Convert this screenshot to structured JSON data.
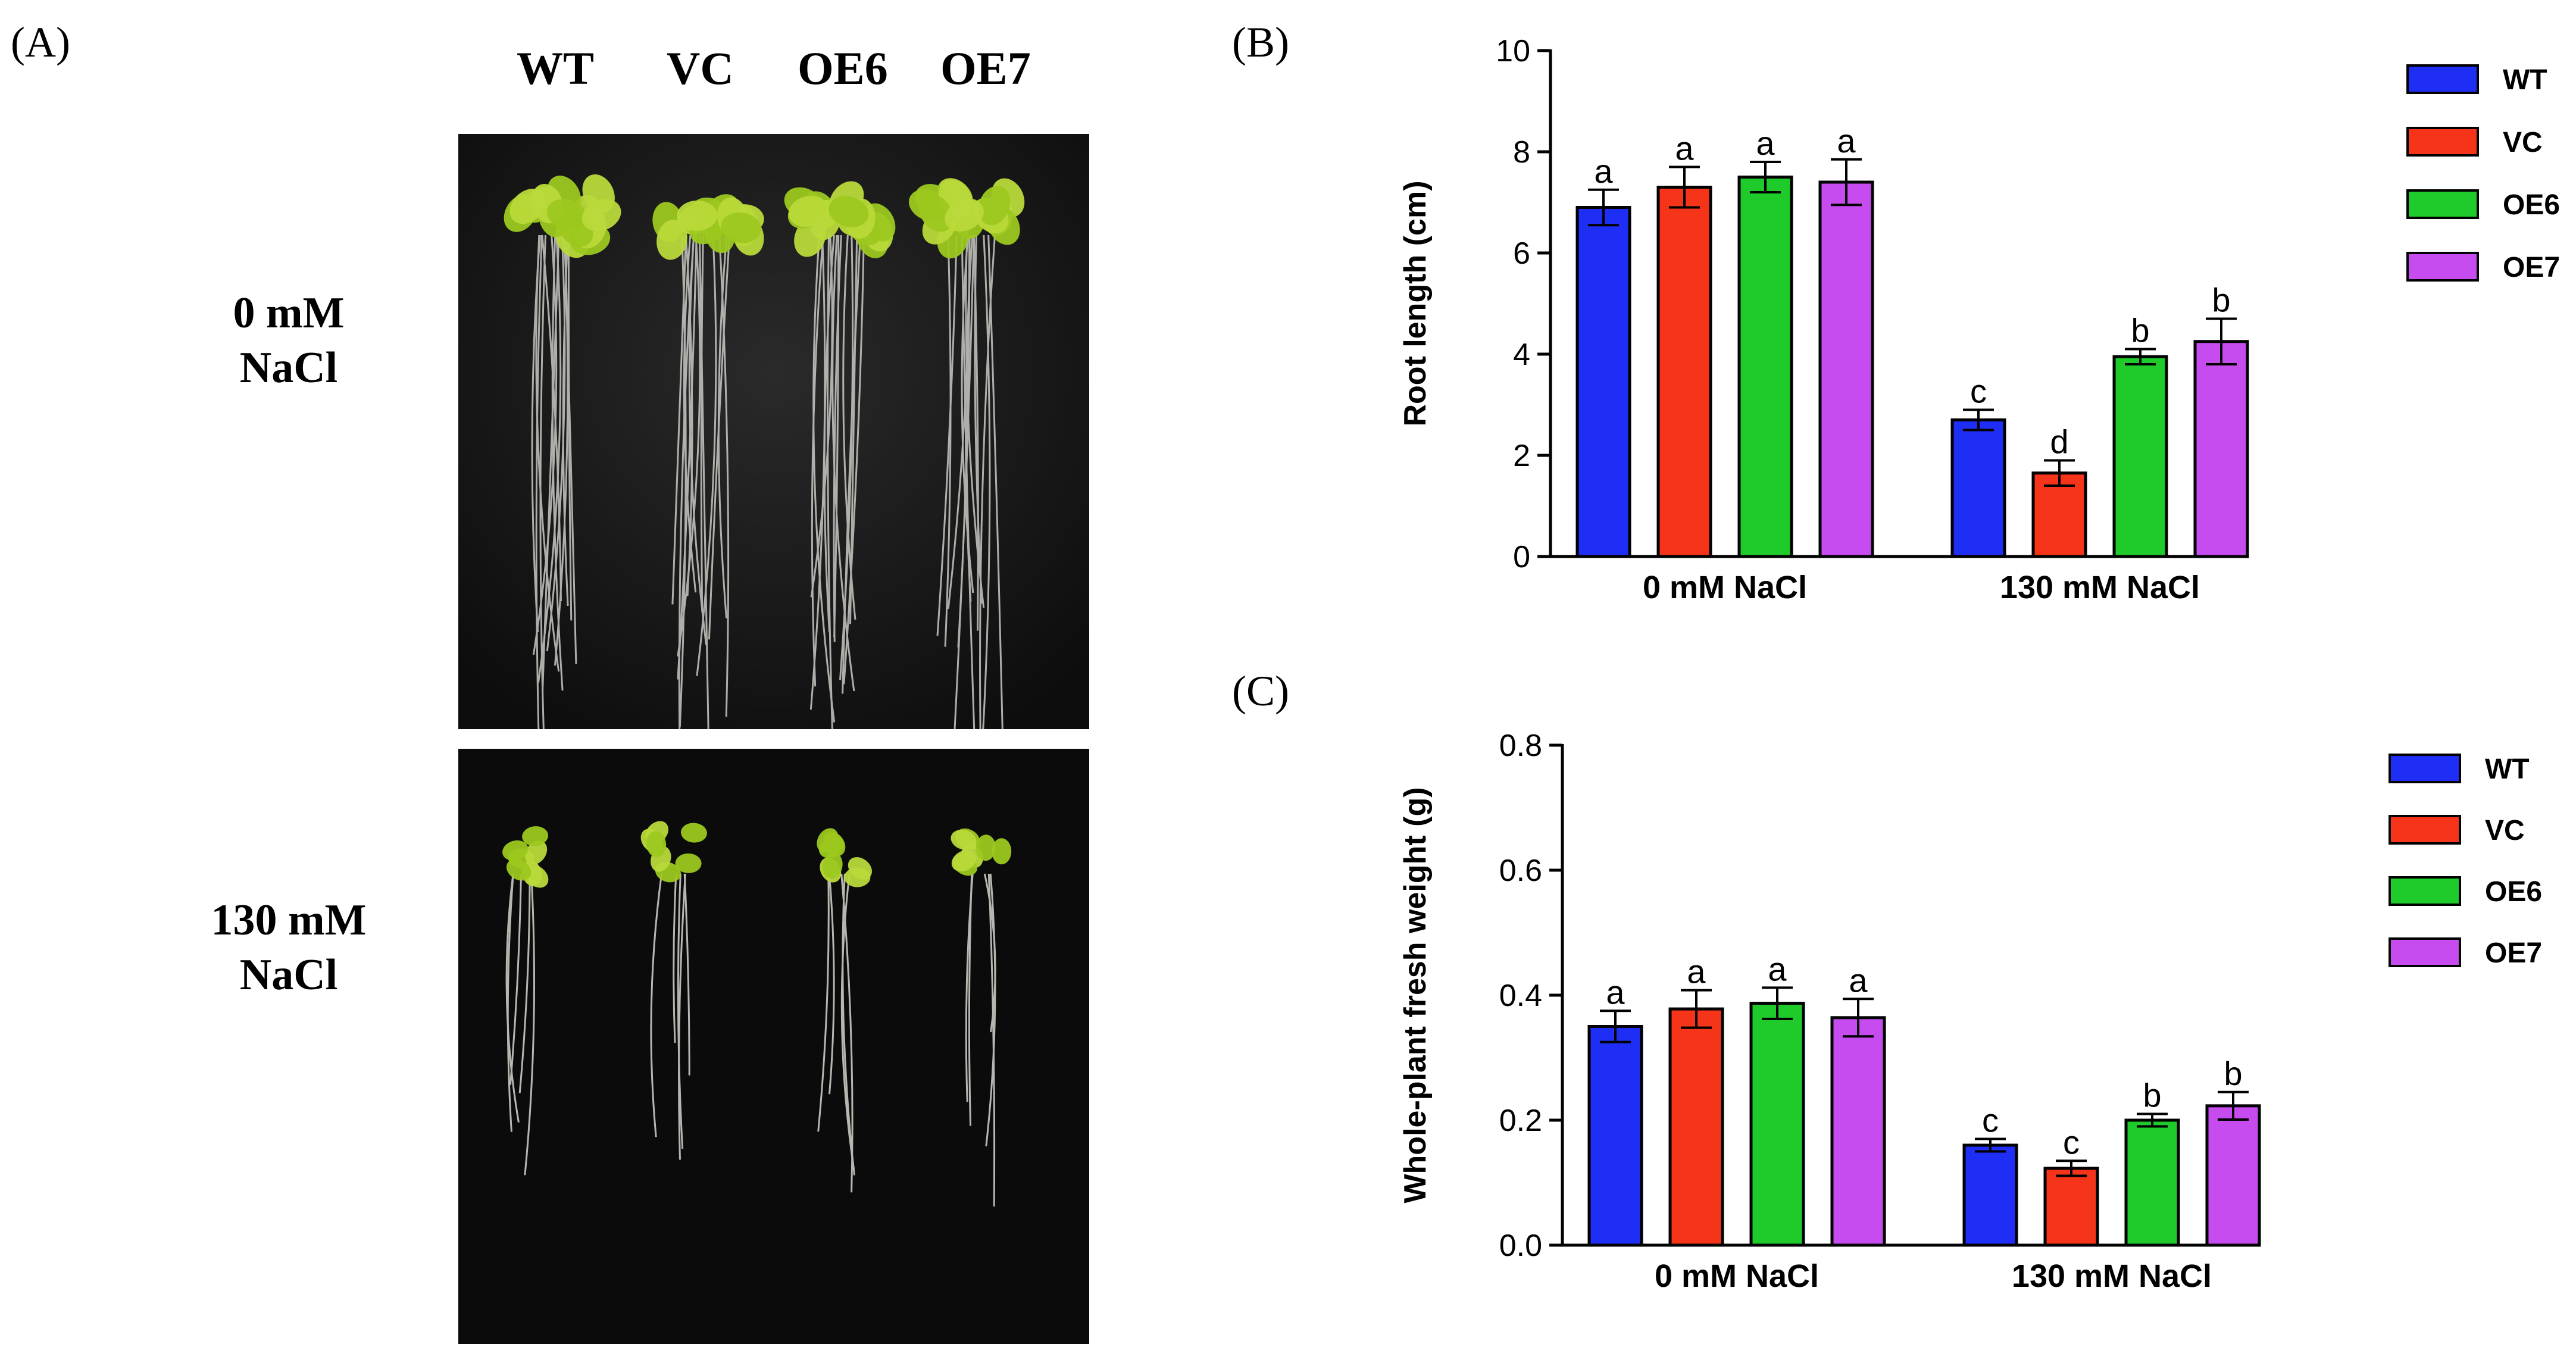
{
  "panel_a": {
    "label": "(A)",
    "genotypes": [
      "WT",
      "VC",
      "OE6",
      "OE7"
    ],
    "conditions": [
      {
        "line1": "0 mM",
        "line2": "NaCl"
      },
      {
        "line1": "130 mM",
        "line2": "NaCl"
      }
    ]
  },
  "panel_b": {
    "label": "(B)"
  },
  "panel_c": {
    "label": "(C)"
  },
  "colors": {
    "WT": "#1f2ef5",
    "VC": "#f5341a",
    "OE6": "#1ecb2a",
    "OE7": "#c64cf0"
  },
  "chart_data": [
    {
      "type": "bar",
      "title": "",
      "ylabel": "Root length (cm)",
      "xlabel": "",
      "ylim": [
        0,
        10
      ],
      "yticks": [
        0,
        2,
        4,
        6,
        8,
        10
      ],
      "categories": [
        "0 mM NaCl",
        "130 mM NaCl"
      ],
      "series": [
        {
          "name": "WT",
          "values": [
            6.9,
            2.7
          ],
          "errors": [
            0.35,
            0.2
          ],
          "letters": [
            "a",
            "c"
          ]
        },
        {
          "name": "VC",
          "values": [
            7.3,
            1.65
          ],
          "errors": [
            0.4,
            0.25
          ],
          "letters": [
            "a",
            "d"
          ]
        },
        {
          "name": "OE6",
          "values": [
            7.5,
            3.95
          ],
          "errors": [
            0.3,
            0.15
          ],
          "letters": [
            "a",
            "b"
          ]
        },
        {
          "name": "OE7",
          "values": [
            7.4,
            4.25
          ],
          "errors": [
            0.45,
            0.45
          ],
          "letters": [
            "a",
            "b"
          ]
        }
      ],
      "legend": "top-right"
    },
    {
      "type": "bar",
      "title": "",
      "ylabel": "Whole-plant fresh weight (g)",
      "xlabel": "",
      "ylim": [
        0,
        0.8
      ],
      "yticks": [
        "0.0",
        "0.2",
        "0.4",
        "0.6",
        "0.8"
      ],
      "categories": [
        "0 mM NaCl",
        "130 mM NaCl"
      ],
      "series": [
        {
          "name": "WT",
          "values": [
            0.35,
            0.16
          ],
          "errors": [
            0.025,
            0.01
          ],
          "letters": [
            "a",
            "c"
          ]
        },
        {
          "name": "VC",
          "values": [
            0.378,
            0.123
          ],
          "errors": [
            0.03,
            0.012
          ],
          "letters": [
            "a",
            "c"
          ]
        },
        {
          "name": "OE6",
          "values": [
            0.387,
            0.2
          ],
          "errors": [
            0.025,
            0.01
          ],
          "letters": [
            "a",
            "b"
          ]
        },
        {
          "name": "OE7",
          "values": [
            0.364,
            0.223
          ],
          "errors": [
            0.03,
            0.022
          ],
          "letters": [
            "a",
            "b"
          ]
        }
      ],
      "legend": "top-right"
    }
  ]
}
